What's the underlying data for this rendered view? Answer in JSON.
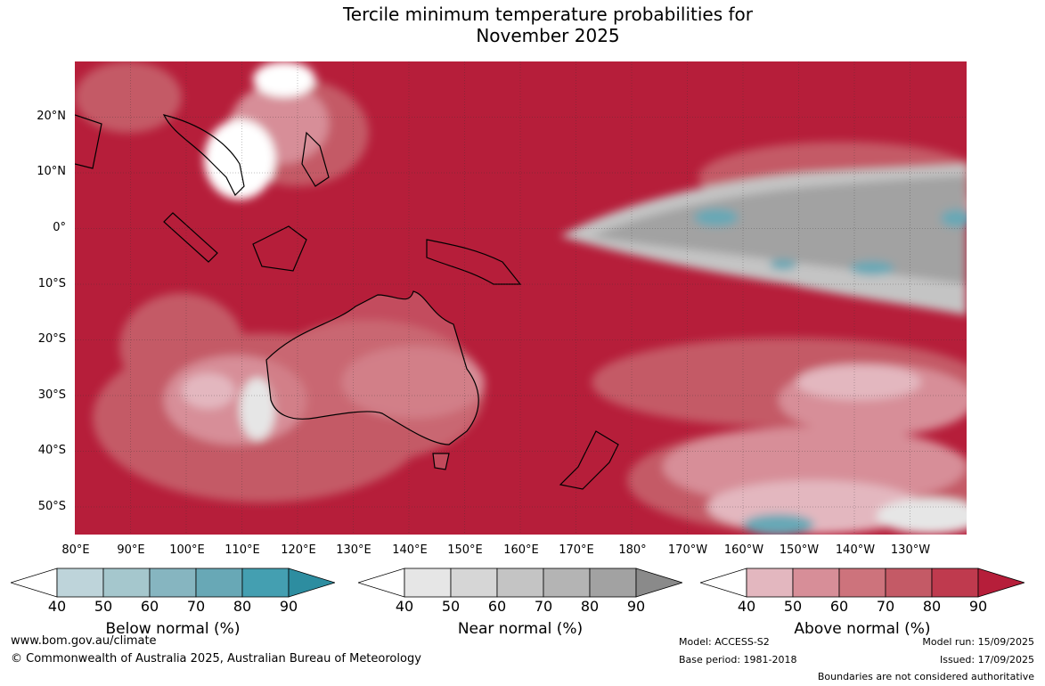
{
  "title_line1": "Tercile minimum temperature probabilities for",
  "title_line2": "November 2025",
  "lat_labels": [
    "20°N",
    "10°N",
    "0°",
    "10°S",
    "20°S",
    "30°S",
    "40°S",
    "50°S"
  ],
  "lon_labels": [
    "80°E",
    "90°E",
    "100°E",
    "110°E",
    "120°E",
    "130°E",
    "140°E",
    "150°E",
    "160°E",
    "170°E",
    "180°",
    "170°W",
    "160°W",
    "150°W",
    "140°W",
    "130°W"
  ],
  "colorbars": [
    {
      "title": "Below normal (%)",
      "colors": [
        "#bed4da",
        "#a5c7cd",
        "#86b5c0",
        "#68a8b6",
        "#449fb1",
        "#2d8da0"
      ],
      "ticks": [
        "40",
        "50",
        "60",
        "70",
        "80",
        "90"
      ]
    },
    {
      "title": "Near normal (%)",
      "colors": [
        "#e6e6e6",
        "#d6d6d6",
        "#c4c4c4",
        "#b4b4b4",
        "#a2a2a2",
        "#8a8a8a"
      ],
      "ticks": [
        "40",
        "50",
        "60",
        "70",
        "80",
        "90"
      ]
    },
    {
      "title": "Above normal (%)",
      "colors": [
        "#e3b7bf",
        "#d78e98",
        "#cd737c",
        "#c45a66",
        "#bf3a4e",
        "#b61e3a"
      ],
      "ticks": [
        "40",
        "50",
        "60",
        "70",
        "80",
        "90"
      ]
    }
  ],
  "footer": {
    "url": "www.bom.gov.au/climate",
    "copyright": "© Commonwealth of Australia 2025, Australian Bureau of Meteorology",
    "model": "Model: ACCESS-S2",
    "base_period": "Base period: 1981-2018",
    "model_run": "Model run: 15/09/2025",
    "issued": "Issued: 17/09/2025",
    "disclaimer": "Boundaries are not considered authoritative"
  }
}
